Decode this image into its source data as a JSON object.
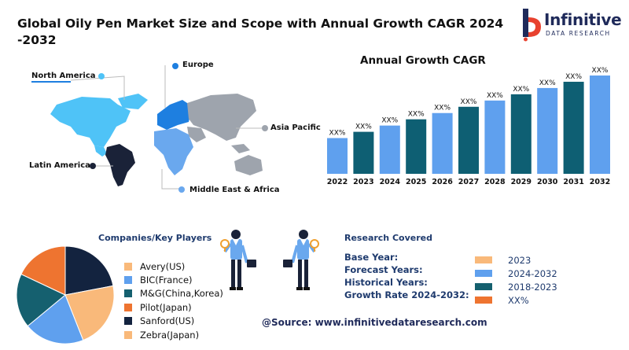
{
  "title": "Global Oily Pen Market Size and Scope with Annual Growth CAGR 2024-2032",
  "logo": {
    "name": "Infinitive",
    "subtitle": "DATA RESEARCH"
  },
  "map": {
    "regions": [
      {
        "key": "north_america",
        "label": "North America",
        "color": "#4fc3f7"
      },
      {
        "key": "europe",
        "label": "Europe",
        "color": "#1e7fe0"
      },
      {
        "key": "asia_pacific",
        "label": "Asia Pacific",
        "color": "#9ea4ad"
      },
      {
        "key": "latin_america",
        "label": "Latin America",
        "color": "#1a2238"
      },
      {
        "key": "middle_east_africa",
        "label": "Middle East & Africa",
        "color": "#6aa8ee"
      }
    ]
  },
  "chart_data": [
    {
      "type": "bar",
      "title": "Annual Growth CAGR",
      "categories": [
        "2022",
        "2023",
        "2024",
        "2025",
        "2026",
        "2027",
        "2028",
        "2029",
        "2030",
        "2031",
        "2032"
      ],
      "values": [
        1,
        2,
        3,
        4,
        5,
        6,
        7,
        8,
        9,
        10,
        11
      ],
      "data_labels": [
        "XX%",
        "XX%",
        "XX%",
        "XX%",
        "XX%",
        "XX%",
        "XX%",
        "XX%",
        "XX%",
        "XX%",
        "XX%"
      ],
      "colors": [
        "#5fa0ee",
        "#0e5f73",
        "#5fa0ee",
        "#0e5f73",
        "#5fa0ee",
        "#0e5f73",
        "#5fa0ee",
        "#0e5f73",
        "#5fa0ee",
        "#0e5f73",
        "#5fa0ee"
      ],
      "grid": false,
      "legend": "none"
    },
    {
      "type": "pie",
      "title": "Companies/Key Players",
      "labels": [
        "Avery(US)",
        "BIC(France)",
        "M&G(China,Korea)",
        "Pilot(Japan)",
        "Sanford(US)",
        "Zebra(Japan)"
      ],
      "values": [
        0,
        20,
        18,
        18,
        22,
        22
      ],
      "colors": [
        "#f9b97a",
        "#5fa0ee",
        "#15606f",
        "#ee7430",
        "#13233f",
        "#f9b97a"
      ],
      "legend": "right"
    }
  ],
  "players_title": "Companies/Key Players",
  "research": {
    "title": "Research Covered",
    "rows": [
      {
        "label": "Base Year:",
        "value": "2023",
        "color": "#f9b97a"
      },
      {
        "label": "Forecast Years:",
        "value": "2024-2032",
        "color": "#5fa0ee"
      },
      {
        "label": "Historical Years:",
        "value": "2018-2023",
        "color": "#15606f"
      },
      {
        "label": "Growth Rate 2024-2032:",
        "value": "XX%",
        "color": "#ee7430"
      }
    ]
  },
  "source": "@Source: www.infinitivedataresearch.com",
  "icons": [
    "logo-icon",
    "businessman-magnifier-icon",
    "world-map"
  ]
}
